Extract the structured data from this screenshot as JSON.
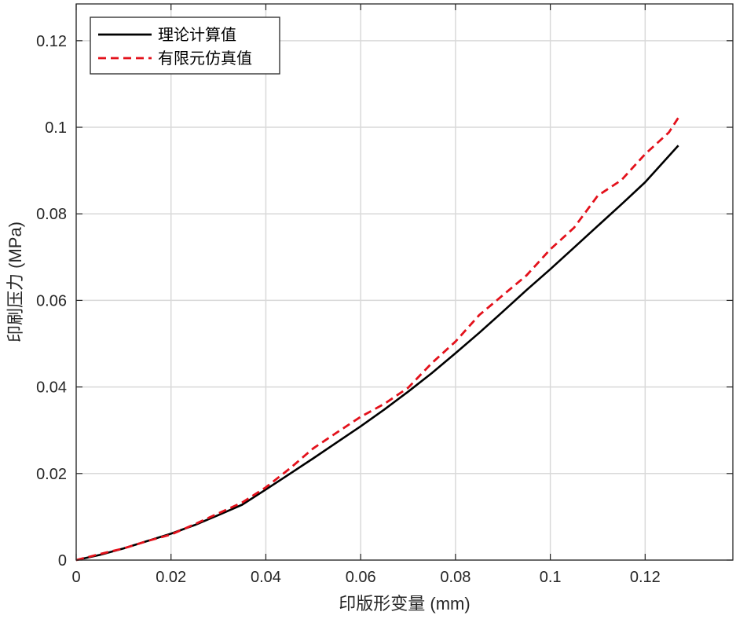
{
  "chart_data": {
    "type": "line",
    "xlabel": "印版形变量 (mm)",
    "ylabel": "印刷压力 (MPa)",
    "xlim": [
      0,
      0.1385
    ],
    "ylim": [
      0,
      0.1285
    ],
    "xticks": [
      0,
      0.02,
      0.04,
      0.06,
      0.08,
      0.1,
      0.12
    ],
    "xtick_labels": [
      "0",
      "0.02",
      "0.04",
      "0.06",
      "0.08",
      "0.1",
      "0.12"
    ],
    "yticks": [
      0,
      0.02,
      0.04,
      0.06,
      0.08,
      0.1,
      0.12
    ],
    "ytick_labels": [
      "0",
      "0.02",
      "0.04",
      "0.06",
      "0.08",
      "0.1",
      "0.12"
    ],
    "grid": true,
    "legend_position": "top-left",
    "series": [
      {
        "name": "理论计算值",
        "style": "solid",
        "color": "#000000",
        "x": [
          0,
          0.005,
          0.01,
          0.015,
          0.02,
          0.025,
          0.03,
          0.035,
          0.04,
          0.045,
          0.05,
          0.055,
          0.06,
          0.065,
          0.07,
          0.075,
          0.08,
          0.085,
          0.09,
          0.095,
          0.1,
          0.105,
          0.11,
          0.115,
          0.12,
          0.127
        ],
        "y": [
          0,
          0.0012,
          0.0027,
          0.0044,
          0.0061,
          0.0081,
          0.0104,
          0.0128,
          0.0163,
          0.0199,
          0.0235,
          0.0272,
          0.0309,
          0.0348,
          0.0389,
          0.0432,
          0.0478,
          0.0525,
          0.0574,
          0.0624,
          0.0672,
          0.0722,
          0.0772,
          0.0822,
          0.0873,
          0.0958
        ]
      },
      {
        "name": "有限元仿真值",
        "style": "dashed",
        "color": "#e3111b",
        "x": [
          0,
          0.005,
          0.01,
          0.015,
          0.02,
          0.025,
          0.03,
          0.035,
          0.04,
          0.045,
          0.05,
          0.055,
          0.06,
          0.065,
          0.07,
          0.075,
          0.08,
          0.085,
          0.09,
          0.095,
          0.1,
          0.105,
          0.11,
          0.115,
          0.12,
          0.125,
          0.127
        ],
        "y": [
          0,
          0.0014,
          0.0027,
          0.0044,
          0.0059,
          0.0083,
          0.0108,
          0.0133,
          0.0168,
          0.0211,
          0.0258,
          0.0295,
          0.0331,
          0.0361,
          0.0398,
          0.0455,
          0.0505,
          0.0566,
          0.0612,
          0.0658,
          0.0718,
          0.0768,
          0.0842,
          0.0878,
          0.0938,
          0.0988,
          0.1022
        ]
      }
    ]
  }
}
